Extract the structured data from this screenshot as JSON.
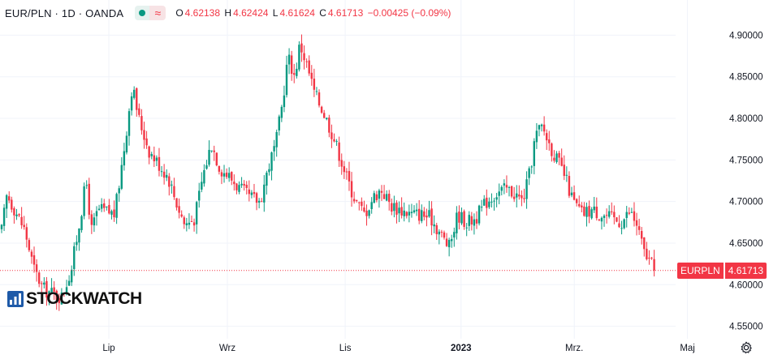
{
  "header": {
    "symbol": "EUR/PLN · 1D · OANDA",
    "wave_glyph": "≈",
    "o_label": "O",
    "o_value": "4.62138",
    "h_label": "H",
    "h_value": "4.62424",
    "l_label": "L",
    "l_value": "4.61624",
    "c_label": "C",
    "c_value": "4.61713",
    "change": "−0.00425 (−0.09%)"
  },
  "watermark": {
    "text": "STOCKWATCH"
  },
  "last_price": {
    "symbol": "EURPLN",
    "value": "4.61713"
  },
  "colors": {
    "up": "#089981",
    "down": "#f23645",
    "grid": "#f0f3fa",
    "axis_text": "#131722"
  },
  "chart_data": {
    "type": "candlestick",
    "y_axis": {
      "ticks": [
        "4.90000",
        "4.85000",
        "4.80000",
        "4.75000",
        "4.70000",
        "4.65000",
        "4.60000",
        "4.55000"
      ],
      "range": [
        4.535,
        4.915
      ]
    },
    "x_axis": {
      "labels": [
        {
          "text": "Lip",
          "t": 0.161
        },
        {
          "text": "Wrz",
          "t": 0.339
        },
        {
          "text": "Lis",
          "t": 0.516
        },
        {
          "text": "2023",
          "t": 0.69
        },
        {
          "text": "Mrz.",
          "t": 0.86
        },
        {
          "text": "Maj",
          "t": 1.03
        }
      ]
    },
    "grid": true,
    "last_close": 4.61713,
    "close_path": [
      [
        0.0,
        4.665
      ],
      [
        0.008,
        4.708
      ],
      [
        0.02,
        4.69
      ],
      [
        0.035,
        4.665
      ],
      [
        0.048,
        4.62
      ],
      [
        0.062,
        4.595
      ],
      [
        0.075,
        4.59
      ],
      [
        0.09,
        4.585
      ],
      [
        0.105,
        4.62
      ],
      [
        0.118,
        4.68
      ],
      [
        0.127,
        4.725
      ],
      [
        0.135,
        4.665
      ],
      [
        0.145,
        4.69
      ],
      [
        0.158,
        4.688
      ],
      [
        0.17,
        4.685
      ],
      [
        0.185,
        4.77
      ],
      [
        0.196,
        4.84
      ],
      [
        0.206,
        4.8
      ],
      [
        0.222,
        4.76
      ],
      [
        0.236,
        4.745
      ],
      [
        0.25,
        4.73
      ],
      [
        0.262,
        4.7
      ],
      [
        0.275,
        4.672
      ],
      [
        0.29,
        4.68
      ],
      [
        0.302,
        4.73
      ],
      [
        0.315,
        4.77
      ],
      [
        0.328,
        4.74
      ],
      [
        0.342,
        4.73
      ],
      [
        0.358,
        4.715
      ],
      [
        0.372,
        4.705
      ],
      [
        0.388,
        4.7
      ],
      [
        0.4,
        4.74
      ],
      [
        0.412,
        4.77
      ],
      [
        0.422,
        4.82
      ],
      [
        0.43,
        4.875
      ],
      [
        0.44,
        4.85
      ],
      [
        0.448,
        4.89
      ],
      [
        0.458,
        4.865
      ],
      [
        0.47,
        4.83
      ],
      [
        0.482,
        4.81
      ],
      [
        0.495,
        4.785
      ],
      [
        0.508,
        4.755
      ],
      [
        0.52,
        4.725
      ],
      [
        0.532,
        4.7
      ],
      [
        0.545,
        4.685
      ],
      [
        0.558,
        4.705
      ],
      [
        0.57,
        4.715
      ],
      [
        0.585,
        4.695
      ],
      [
        0.6,
        4.69
      ],
      [
        0.615,
        4.685
      ],
      [
        0.63,
        4.685
      ],
      [
        0.645,
        4.68
      ],
      [
        0.66,
        4.66
      ],
      [
        0.672,
        4.645
      ],
      [
        0.685,
        4.685
      ],
      [
        0.698,
        4.675
      ],
      [
        0.712,
        4.68
      ],
      [
        0.728,
        4.7
      ],
      [
        0.742,
        4.71
      ],
      [
        0.758,
        4.715
      ],
      [
        0.77,
        4.71
      ],
      [
        0.782,
        4.7
      ],
      [
        0.792,
        4.73
      ],
      [
        0.802,
        4.78
      ],
      [
        0.812,
        4.79
      ],
      [
        0.822,
        4.77
      ],
      [
        0.834,
        4.75
      ],
      [
        0.846,
        4.73
      ],
      [
        0.858,
        4.7
      ],
      [
        0.872,
        4.685
      ],
      [
        0.886,
        4.69
      ],
      [
        0.9,
        4.685
      ],
      [
        0.915,
        4.68
      ],
      [
        0.93,
        4.675
      ],
      [
        0.944,
        4.688
      ],
      [
        0.955,
        4.67
      ],
      [
        0.964,
        4.64
      ],
      [
        0.972,
        4.63
      ],
      [
        0.98,
        4.617
      ]
    ]
  }
}
